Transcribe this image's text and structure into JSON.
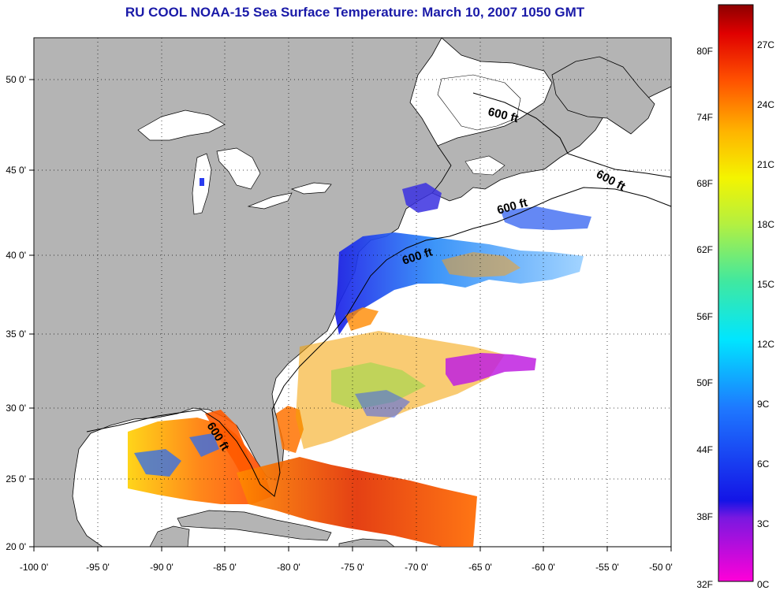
{
  "title": "RU COOL  NOAA-15  Sea Surface Temperature:  March 10, 2007 1050 GMT",
  "lon_ticks": [
    "-100 0'",
    "-95 0'",
    "-90 0'",
    "-85 0'",
    "-80 0'",
    "-75 0'",
    "-70 0'",
    "-65 0'",
    "-60 0'",
    "-55 0'",
    "-50 0'"
  ],
  "lat_ticks": [
    "50 0'",
    "45 0'",
    "40 0'",
    "35 0'",
    "30 0'",
    "25 0'",
    "20 0'"
  ],
  "isobath_label": "600 ft",
  "colorbar": {
    "fahrenheit": [
      "80F",
      "74F",
      "68F",
      "62F",
      "56F",
      "50F",
      "44F",
      "38F",
      "32F"
    ],
    "celsius": [
      "27C",
      "24C",
      "21C",
      "18C",
      "15C",
      "12C",
      "9C",
      "6C",
      "3C",
      "0C"
    ]
  },
  "colors": {
    "land": "#b4b4b4",
    "ocean_nodata": "#ffffff",
    "title": "#1a1aa8"
  }
}
